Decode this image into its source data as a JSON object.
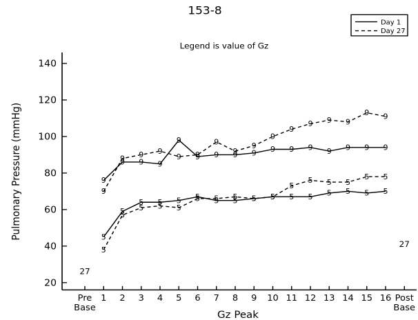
{
  "figure_id": "153-8",
  "chart_data": {
    "type": "line",
    "title": "Legend is value of Gz",
    "xlabel": "Gz Peak",
    "ylabel": "Pulmonary Pressure (mmHg)",
    "ylim": [
      16,
      146
    ],
    "y_ticks": [
      20,
      40,
      60,
      80,
      100,
      120,
      140
    ],
    "x_ticks": [
      {
        "x": 0,
        "label": "Pre",
        "label2": "Base"
      },
      {
        "x": 1,
        "label": "1"
      },
      {
        "x": 2,
        "label": "2"
      },
      {
        "x": 3,
        "label": "3"
      },
      {
        "x": 4,
        "label": "4"
      },
      {
        "x": 5,
        "label": "5"
      },
      {
        "x": 6,
        "label": "6"
      },
      {
        "x": 7,
        "label": "7"
      },
      {
        "x": 8,
        "label": "8"
      },
      {
        "x": 9,
        "label": "9"
      },
      {
        "x": 10,
        "label": "10"
      },
      {
        "x": 11,
        "label": "11"
      },
      {
        "x": 12,
        "label": "12"
      },
      {
        "x": 13,
        "label": "13"
      },
      {
        "x": 14,
        "label": "14"
      },
      {
        "x": 15,
        "label": "15"
      },
      {
        "x": 16,
        "label": "16"
      },
      {
        "x": 17,
        "label": "Post",
        "label2": "Base"
      }
    ],
    "legend": {
      "position": "top-right",
      "entries": [
        {
          "name": "Day 1",
          "style": "solid"
        },
        {
          "name": "Day 27",
          "style": "dashed"
        }
      ]
    },
    "series": [
      {
        "name": "Day 1",
        "style": "solid",
        "marker": "9",
        "x": [
          1,
          2,
          3,
          4,
          5,
          6,
          7,
          8,
          9,
          10,
          11,
          12,
          13,
          14,
          15,
          16
        ],
        "y": [
          76,
          86,
          86,
          85,
          98,
          89,
          90,
          90,
          91,
          93,
          93,
          94,
          92,
          94,
          94,
          94
        ]
      },
      {
        "name": "Day 27",
        "style": "dashed",
        "marker": "9",
        "x": [
          1,
          2,
          3,
          4,
          5,
          6,
          7,
          8,
          9,
          10,
          11,
          12,
          13,
          14,
          15,
          16
        ],
        "y": [
          70,
          88,
          90,
          92,
          89,
          90,
          97,
          92,
          95,
          100,
          104,
          107,
          109,
          108,
          113,
          111
        ]
      },
      {
        "name": "Day 1",
        "style": "solid",
        "marker": "5",
        "x": [
          1,
          2,
          3,
          4,
          5,
          6,
          7,
          8,
          9,
          10,
          11,
          12,
          13,
          14,
          15,
          16
        ],
        "y": [
          45,
          59,
          64,
          64,
          65,
          67,
          65,
          65,
          66,
          67,
          67,
          67,
          69,
          70,
          69,
          70
        ]
      },
      {
        "name": "Day 27",
        "style": "dashed",
        "marker": "5",
        "x": [
          1,
          2,
          3,
          4,
          5,
          6,
          7,
          8,
          9,
          10,
          11,
          12,
          13,
          14,
          15,
          16
        ],
        "y": [
          38,
          57,
          61,
          62,
          61,
          66,
          66,
          67,
          66,
          67,
          73,
          76,
          75,
          75,
          78,
          78
        ]
      }
    ],
    "baseline_points": [
      {
        "x": 0,
        "y": 26,
        "label": "27"
      },
      {
        "x": 17,
        "y": 41,
        "label": "27"
      }
    ]
  }
}
